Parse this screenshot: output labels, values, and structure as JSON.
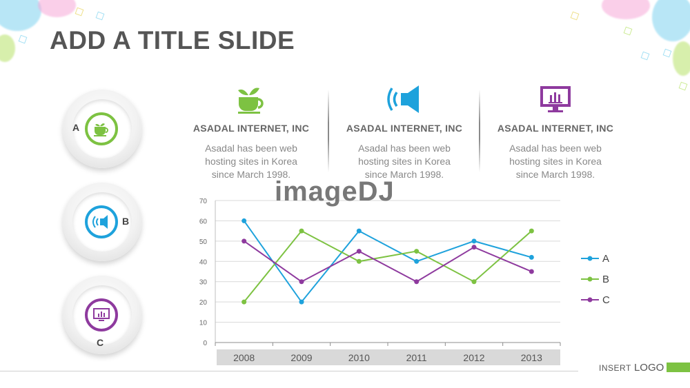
{
  "slide": {
    "title": "ADD A TITLE SLIDE",
    "watermark": "imageDJ",
    "footer": {
      "insert": "INSERT",
      "logo": "LOGO"
    }
  },
  "badges": [
    {
      "letter": "A",
      "icon": "teacup-icon",
      "color": "#7dc242"
    },
    {
      "letter": "B",
      "icon": "speaker-icon",
      "color": "#1ea2dc"
    },
    {
      "letter": "C",
      "icon": "monitor-chart-icon",
      "color": "#8e3a9e"
    }
  ],
  "columns": [
    {
      "icon": "teacup-icon",
      "color": "#7dc242",
      "title": "ASADAL INTERNET, INC",
      "desc": "Asadal has been  web hosting sites in Korea since March 1998."
    },
    {
      "icon": "speaker-icon",
      "color": "#1ea2dc",
      "title": "ASADAL INTERNET, INC",
      "desc": "Asadal has been  web hosting sites in Korea since March 1998."
    },
    {
      "icon": "monitor-chart-icon",
      "color": "#8e3a9e",
      "title": "ASADAL INTERNET, INC",
      "desc": "Asadal has been  web hosting sites in Korea since March 1998."
    }
  ],
  "chart_data": {
    "type": "line",
    "categories": [
      "2008",
      "2009",
      "2010",
      "2011",
      "2012",
      "2013"
    ],
    "series": [
      {
        "name": "A",
        "color": "#1ea2dc",
        "values": [
          60,
          20,
          55,
          40,
          50,
          42
        ]
      },
      {
        "name": "B",
        "color": "#7dc242",
        "values": [
          20,
          55,
          40,
          45,
          30,
          55
        ]
      },
      {
        "name": "C",
        "color": "#8e3a9e",
        "values": [
          50,
          30,
          45,
          30,
          47,
          35
        ]
      }
    ],
    "ylim": [
      0,
      70
    ],
    "yticks": [
      0,
      10,
      20,
      30,
      40,
      50,
      60,
      70
    ],
    "grid": true,
    "legend": "right"
  }
}
